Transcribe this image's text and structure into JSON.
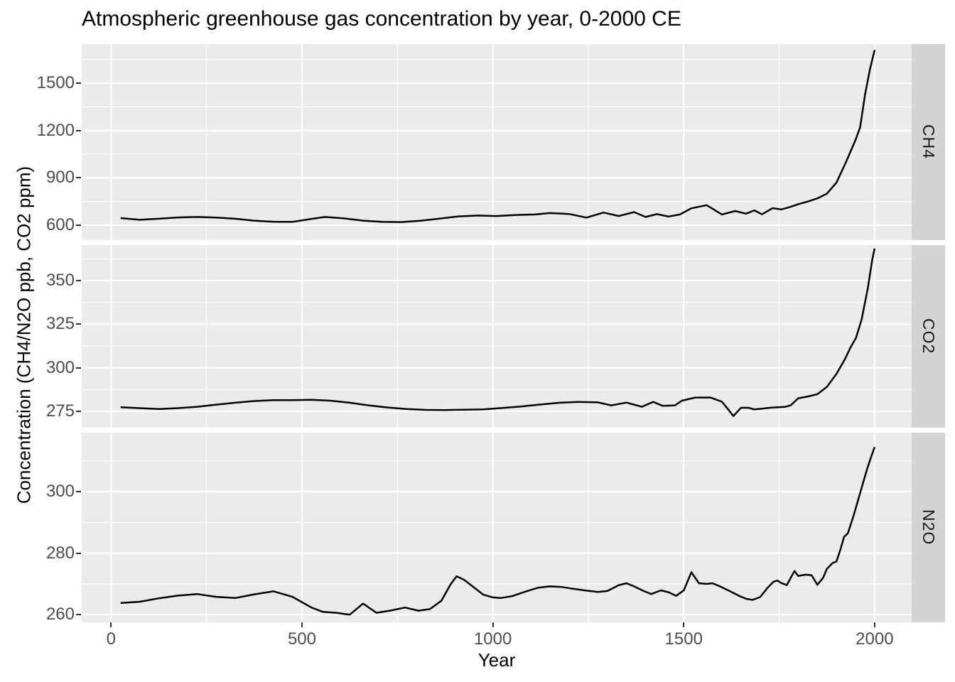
{
  "title": "Atmospheric greenhouse gas concentration by year, 0-2000 CE",
  "chart_data": {
    "type": "line",
    "title": "Atmospheric greenhouse gas concentration by year, 0-2000 CE",
    "xlabel": "Year",
    "ylabel": "Concentration (CH4/N2O ppb, CO2 ppm)",
    "legend": "none",
    "grid": "on",
    "facets_position": "right-strips",
    "x_domain": [
      -77,
      2097
    ],
    "x_major_ticks": [
      0,
      500,
      1000,
      1500,
      2000
    ],
    "x_minor_ticks": [
      250,
      750,
      1250,
      1750
    ],
    "line_color": "#000000",
    "series": [
      {
        "name": "CH4",
        "unit": "ppb",
        "ylim": [
          505.5,
          1747.5
        ],
        "yticks": [
          600,
          900,
          1200,
          1500
        ],
        "yminor": [
          750,
          1050,
          1350,
          1650
        ],
        "points": [
          [
            25,
            645
          ],
          [
            75,
            634
          ],
          [
            125,
            641
          ],
          [
            175,
            649
          ],
          [
            225,
            652
          ],
          [
            275,
            648
          ],
          [
            325,
            641
          ],
          [
            375,
            629
          ],
          [
            425,
            622
          ],
          [
            475,
            621
          ],
          [
            525,
            640
          ],
          [
            560,
            652
          ],
          [
            610,
            643
          ],
          [
            660,
            629
          ],
          [
            710,
            621
          ],
          [
            760,
            620
          ],
          [
            810,
            628
          ],
          [
            860,
            642
          ],
          [
            910,
            656
          ],
          [
            960,
            661
          ],
          [
            1010,
            658
          ],
          [
            1060,
            665
          ],
          [
            1110,
            668
          ],
          [
            1150,
            677
          ],
          [
            1200,
            671
          ],
          [
            1245,
            648
          ],
          [
            1290,
            680
          ],
          [
            1330,
            658
          ],
          [
            1370,
            683
          ],
          [
            1400,
            652
          ],
          [
            1430,
            670
          ],
          [
            1460,
            655
          ],
          [
            1490,
            668
          ],
          [
            1520,
            707
          ],
          [
            1560,
            727
          ],
          [
            1600,
            668
          ],
          [
            1635,
            690
          ],
          [
            1663,
            673
          ],
          [
            1685,
            694
          ],
          [
            1705,
            669
          ],
          [
            1733,
            708
          ],
          [
            1755,
            700
          ],
          [
            1775,
            713
          ],
          [
            1800,
            733
          ],
          [
            1825,
            750
          ],
          [
            1850,
            770
          ],
          [
            1875,
            800
          ],
          [
            1900,
            870
          ],
          [
            1925,
            1000
          ],
          [
            1950,
            1140
          ],
          [
            1962,
            1220
          ],
          [
            1975,
            1430
          ],
          [
            1988,
            1590
          ],
          [
            2000,
            1710
          ]
        ]
      },
      {
        "name": "CO2",
        "unit": "ppm",
        "ylim": [
          265.6,
          370.4
        ],
        "yticks": [
          275,
          300,
          325,
          350
        ],
        "yminor": [
          287.5,
          312.5,
          337.5,
          362.5
        ],
        "points": [
          [
            25,
            277.3
          ],
          [
            75,
            276.8
          ],
          [
            125,
            276.3
          ],
          [
            175,
            276.8
          ],
          [
            225,
            277.6
          ],
          [
            275,
            278.8
          ],
          [
            325,
            279.9
          ],
          [
            375,
            280.9
          ],
          [
            425,
            281.4
          ],
          [
            475,
            281.4
          ],
          [
            525,
            281.6
          ],
          [
            575,
            281.1
          ],
          [
            625,
            279.9
          ],
          [
            675,
            278.4
          ],
          [
            725,
            277.2
          ],
          [
            775,
            276.3
          ],
          [
            825,
            275.8
          ],
          [
            875,
            275.7
          ],
          [
            925,
            275.9
          ],
          [
            975,
            276.1
          ],
          [
            1025,
            276.9
          ],
          [
            1075,
            277.8
          ],
          [
            1125,
            278.9
          ],
          [
            1175,
            279.9
          ],
          [
            1225,
            280.4
          ],
          [
            1275,
            280.1
          ],
          [
            1310,
            278.4
          ],
          [
            1350,
            280.0
          ],
          [
            1390,
            277.6
          ],
          [
            1420,
            280.4
          ],
          [
            1445,
            278.1
          ],
          [
            1477,
            278.4
          ],
          [
            1495,
            281.1
          ],
          [
            1530,
            282.9
          ],
          [
            1570,
            282.9
          ],
          [
            1600,
            280.5
          ],
          [
            1615,
            276.5
          ],
          [
            1630,
            272.3
          ],
          [
            1650,
            277.0
          ],
          [
            1670,
            277.0
          ],
          [
            1685,
            276.1
          ],
          [
            1700,
            276.4
          ],
          [
            1725,
            277.0
          ],
          [
            1745,
            277.3
          ],
          [
            1765,
            277.5
          ],
          [
            1780,
            278.4
          ],
          [
            1800,
            282.5
          ],
          [
            1825,
            283.5
          ],
          [
            1850,
            284.8
          ],
          [
            1875,
            289.0
          ],
          [
            1900,
            296.5
          ],
          [
            1923,
            305.2
          ],
          [
            1936,
            311.3
          ],
          [
            1951,
            317.1
          ],
          [
            1966,
            327.7
          ],
          [
            1982,
            345.4
          ],
          [
            1994,
            362.4
          ],
          [
            2000,
            368.5
          ]
        ]
      },
      {
        "name": "N2O",
        "unit": "ppb",
        "ylim": [
          257.5,
          319.2
        ],
        "yticks": [
          260,
          280,
          300
        ],
        "yminor": [
          270,
          290,
          310
        ],
        "points": [
          [
            25,
            263.8
          ],
          [
            75,
            264.2
          ],
          [
            125,
            265.3
          ],
          [
            175,
            266.2
          ],
          [
            225,
            266.7
          ],
          [
            275,
            265.8
          ],
          [
            325,
            265.4
          ],
          [
            375,
            266.6
          ],
          [
            425,
            267.6
          ],
          [
            475,
            265.8
          ],
          [
            525,
            262.3
          ],
          [
            555,
            260.9
          ],
          [
            590,
            260.6
          ],
          [
            625,
            260.0
          ],
          [
            660,
            263.6
          ],
          [
            695,
            260.6
          ],
          [
            730,
            261.3
          ],
          [
            770,
            262.3
          ],
          [
            805,
            261.3
          ],
          [
            835,
            261.8
          ],
          [
            865,
            264.5
          ],
          [
            890,
            270.0
          ],
          [
            905,
            272.5
          ],
          [
            925,
            271.3
          ],
          [
            950,
            268.9
          ],
          [
            975,
            266.5
          ],
          [
            1000,
            265.6
          ],
          [
            1020,
            265.4
          ],
          [
            1050,
            266.0
          ],
          [
            1090,
            267.7
          ],
          [
            1120,
            268.8
          ],
          [
            1150,
            269.2
          ],
          [
            1180,
            269.0
          ],
          [
            1210,
            268.4
          ],
          [
            1240,
            267.9
          ],
          [
            1275,
            267.4
          ],
          [
            1300,
            267.7
          ],
          [
            1330,
            269.6
          ],
          [
            1350,
            270.2
          ],
          [
            1370,
            269.2
          ],
          [
            1395,
            267.7
          ],
          [
            1415,
            266.7
          ],
          [
            1440,
            267.9
          ],
          [
            1460,
            267.3
          ],
          [
            1480,
            266.1
          ],
          [
            1500,
            267.9
          ],
          [
            1520,
            273.8
          ],
          [
            1540,
            270.2
          ],
          [
            1560,
            270.0
          ],
          [
            1575,
            270.2
          ],
          [
            1595,
            269.2
          ],
          [
            1620,
            267.7
          ],
          [
            1645,
            266.1
          ],
          [
            1665,
            265.1
          ],
          [
            1680,
            264.8
          ],
          [
            1700,
            265.7
          ],
          [
            1720,
            268.8
          ],
          [
            1735,
            270.7
          ],
          [
            1745,
            271.1
          ],
          [
            1755,
            270.3
          ],
          [
            1770,
            269.6
          ],
          [
            1790,
            274.2
          ],
          [
            1800,
            272.6
          ],
          [
            1820,
            273.0
          ],
          [
            1835,
            272.8
          ],
          [
            1850,
            269.7
          ],
          [
            1865,
            272.0
          ],
          [
            1875,
            274.9
          ],
          [
            1890,
            276.8
          ],
          [
            1900,
            277.3
          ],
          [
            1910,
            281.0
          ],
          [
            1920,
            285.3
          ],
          [
            1930,
            286.5
          ],
          [
            1945,
            292.2
          ],
          [
            1960,
            298.7
          ],
          [
            1970,
            303.0
          ],
          [
            1980,
            307.2
          ],
          [
            1990,
            311.0
          ],
          [
            2000,
            314.5
          ]
        ]
      }
    ]
  },
  "style": {
    "panel_bg": "#EBEBEB",
    "strip_bg": "#D4D4D4",
    "grid_color": "#FFFFFF",
    "tick_mark_color": "#333333",
    "tick_label_color": "#4D4D4D",
    "line_color": "#000000"
  }
}
